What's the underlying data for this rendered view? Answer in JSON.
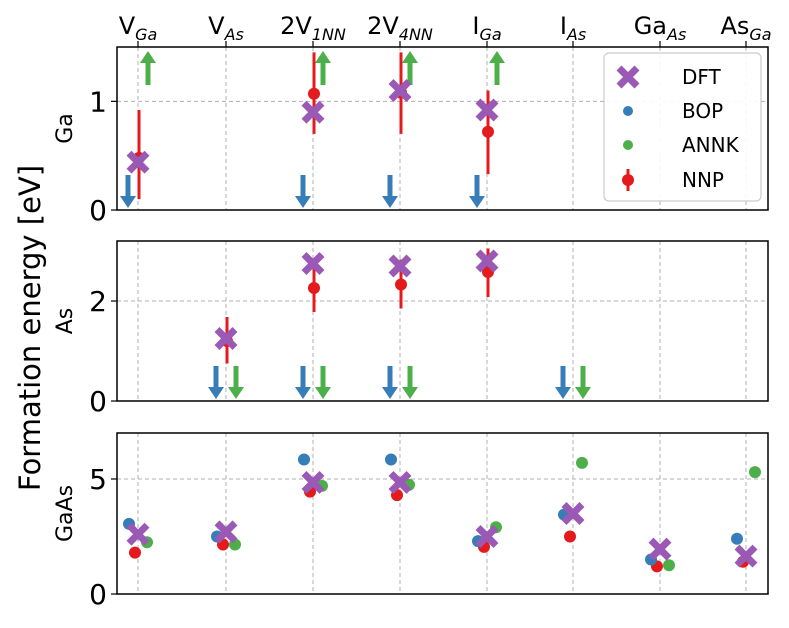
{
  "ylabel": "Formation energy [eV]",
  "categories": [
    {
      "base": "V",
      "sub": "Ga"
    },
    {
      "base": "V",
      "sub": "As"
    },
    {
      "base": "2V",
      "sub": "1NN"
    },
    {
      "base": "2V",
      "sub": "4NN"
    },
    {
      "base": "I",
      "sub": "Ga"
    },
    {
      "base": "I",
      "sub": "As"
    },
    {
      "base": "Ga",
      "sub": "As"
    },
    {
      "base": "As",
      "sub": "Ga"
    }
  ],
  "legend": {
    "placement": "top-right of first panel",
    "entries": [
      {
        "label": "DFT",
        "marker": "x-thick",
        "color": "#9b59b6"
      },
      {
        "label": "BOP",
        "marker": "dot",
        "color": "#377eb8"
      },
      {
        "label": "ANNK",
        "marker": "dot",
        "color": "#4daf4a"
      },
      {
        "label": "NNP",
        "marker": "dot-errorbar",
        "color": "#e41a1c"
      }
    ]
  },
  "colors": {
    "DFT": "#9b59b6",
    "BOP": "#377eb8",
    "ANNK": "#4daf4a",
    "NNP": "#e41a1c",
    "grid": "#b0b0b0"
  },
  "chart_data": [
    {
      "type": "scatter",
      "panel_label": "Ga",
      "ylim": [
        0,
        1.5
      ],
      "yticks": [
        0,
        1
      ],
      "grid": true,
      "series": [
        {
          "name": "DFT",
          "values": [
            0.44,
            null,
            0.9,
            1.1,
            0.92,
            null,
            null,
            null
          ]
        },
        {
          "name": "NNP",
          "values": [
            0.48,
            null,
            1.07,
            1.08,
            0.72,
            null,
            null,
            null
          ],
          "err_low": [
            0.1,
            null,
            0.7,
            0.7,
            0.33,
            null,
            null,
            null
          ],
          "err_high": [
            0.92,
            null,
            1.45,
            1.45,
            1.1,
            null,
            null,
            null
          ]
        }
      ],
      "off_scale_arrows": [
        {
          "series": "BOP",
          "direction": "down",
          "categories": [
            0,
            2,
            3,
            4
          ]
        },
        {
          "series": "ANNK",
          "direction": "up",
          "categories": [
            0,
            2,
            3,
            4
          ]
        }
      ]
    },
    {
      "type": "scatter",
      "panel_label": "As",
      "ylim": [
        0,
        3.2
      ],
      "yticks": [
        0,
        2
      ],
      "grid": true,
      "series": [
        {
          "name": "DFT",
          "values": [
            null,
            1.25,
            2.75,
            2.7,
            2.8,
            null,
            null,
            null
          ]
        },
        {
          "name": "NNP",
          "values": [
            null,
            1.2,
            2.26,
            2.33,
            2.58,
            null,
            null,
            null
          ],
          "err_low": [
            null,
            0.75,
            1.78,
            1.85,
            2.08,
            null,
            null,
            null
          ],
          "err_high": [
            null,
            1.68,
            2.75,
            2.83,
            3.05,
            null,
            null,
            null
          ]
        }
      ],
      "off_scale_arrows": [
        {
          "series": "BOP",
          "direction": "down",
          "categories": [
            1,
            2,
            3,
            5
          ]
        },
        {
          "series": "ANNK",
          "direction": "down",
          "categories": [
            1,
            2,
            3,
            5
          ]
        }
      ]
    },
    {
      "type": "scatter",
      "panel_label": "GaAs",
      "ylim": [
        0,
        7
      ],
      "yticks": [
        0,
        5
      ],
      "grid": true,
      "series": [
        {
          "name": "DFT",
          "values": [
            2.6,
            2.7,
            4.85,
            4.85,
            2.5,
            3.5,
            1.95,
            1.65
          ]
        },
        {
          "name": "BOP",
          "values": [
            3.05,
            2.5,
            5.85,
            5.85,
            2.3,
            3.45,
            1.5,
            2.4
          ]
        },
        {
          "name": "ANNK",
          "values": [
            2.25,
            2.15,
            4.7,
            4.75,
            2.9,
            5.7,
            1.25,
            5.3
          ]
        },
        {
          "name": "NNP",
          "values": [
            1.8,
            2.15,
            4.45,
            4.3,
            2.05,
            2.5,
            1.2,
            1.4
          ]
        }
      ]
    }
  ]
}
